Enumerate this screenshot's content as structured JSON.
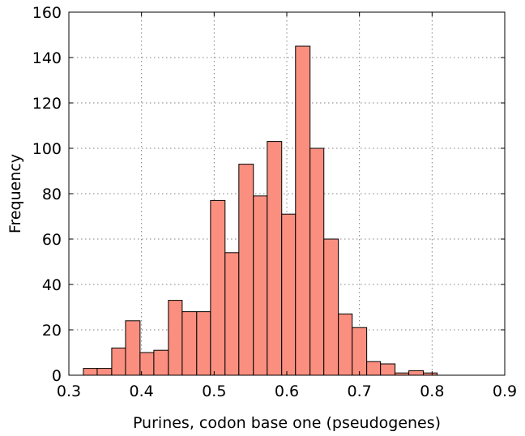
{
  "chart_data": {
    "type": "bar",
    "xlabel": "Purines, codon base one (pseudogenes)",
    "ylabel": "Frequency",
    "title": "",
    "xlim": [
      0.3,
      0.9
    ],
    "ylim": [
      0,
      160
    ],
    "xticks": [
      "0.3",
      "0.4",
      "0.5",
      "0.6",
      "0.7",
      "0.8",
      "0.9"
    ],
    "yticks": [
      "0",
      "20",
      "40",
      "60",
      "80",
      "100",
      "120",
      "140",
      "160"
    ],
    "grid": true,
    "bar_color": "#fa8f80",
    "bins": [
      {
        "x0": 0.32,
        "x1": 0.339,
        "count": 3
      },
      {
        "x0": 0.339,
        "x1": 0.359,
        "count": 3
      },
      {
        "x0": 0.359,
        "x1": 0.378,
        "count": 12
      },
      {
        "x0": 0.378,
        "x1": 0.398,
        "count": 24
      },
      {
        "x0": 0.398,
        "x1": 0.417,
        "count": 10
      },
      {
        "x0": 0.417,
        "x1": 0.437,
        "count": 11
      },
      {
        "x0": 0.437,
        "x1": 0.456,
        "count": 33
      },
      {
        "x0": 0.456,
        "x1": 0.476,
        "count": 28
      },
      {
        "x0": 0.476,
        "x1": 0.495,
        "count": 28
      },
      {
        "x0": 0.495,
        "x1": 0.515,
        "count": 77
      },
      {
        "x0": 0.515,
        "x1": 0.534,
        "count": 54
      },
      {
        "x0": 0.534,
        "x1": 0.554,
        "count": 93
      },
      {
        "x0": 0.554,
        "x1": 0.573,
        "count": 79
      },
      {
        "x0": 0.573,
        "x1": 0.593,
        "count": 103
      },
      {
        "x0": 0.593,
        "x1": 0.612,
        "count": 71
      },
      {
        "x0": 0.612,
        "x1": 0.632,
        "count": 145
      },
      {
        "x0": 0.632,
        "x1": 0.651,
        "count": 100
      },
      {
        "x0": 0.651,
        "x1": 0.671,
        "count": 60
      },
      {
        "x0": 0.671,
        "x1": 0.69,
        "count": 27
      },
      {
        "x0": 0.69,
        "x1": 0.71,
        "count": 21
      },
      {
        "x0": 0.71,
        "x1": 0.729,
        "count": 6
      },
      {
        "x0": 0.729,
        "x1": 0.749,
        "count": 5
      },
      {
        "x0": 0.749,
        "x1": 0.768,
        "count": 1
      },
      {
        "x0": 0.768,
        "x1": 0.788,
        "count": 2
      },
      {
        "x0": 0.788,
        "x1": 0.807,
        "count": 1
      }
    ]
  }
}
